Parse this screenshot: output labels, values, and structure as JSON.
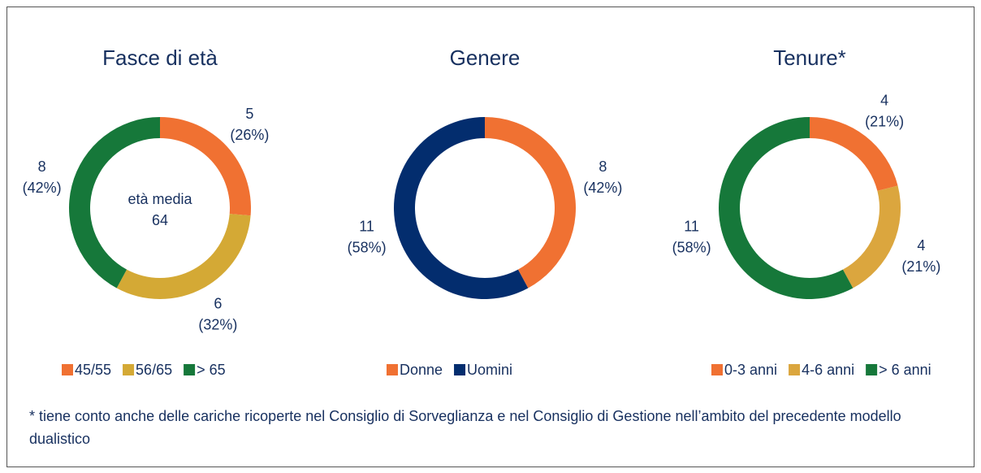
{
  "charts": [
    {
      "chart_data": {
        "type": "pie",
        "donut": true,
        "title": "Fasce di età",
        "categories": [
          "45/55",
          "56/65",
          "> 65"
        ],
        "values": [
          5,
          6,
          8
        ],
        "shares": [
          26,
          32,
          42
        ],
        "share_labels": [
          "(26%)",
          "(32%)",
          "(42%)"
        ],
        "colors": [
          "#f07132",
          "#d4a935",
          "#16783a"
        ],
        "center_label": "età media",
        "center_value": 64
      }
    },
    {
      "chart_data": {
        "type": "pie",
        "donut": true,
        "title": "Genere",
        "categories": [
          "Donne",
          "Uomini"
        ],
        "values": [
          8,
          11
        ],
        "shares": [
          42,
          58
        ],
        "share_labels": [
          "(42%)",
          "(58%)"
        ],
        "colors": [
          "#f07132",
          "#032d6e"
        ]
      }
    },
    {
      "chart_data": {
        "type": "pie",
        "donut": true,
        "title": "Tenure*",
        "categories": [
          "0-3 anni",
          "4-6 anni",
          "> 6 anni"
        ],
        "values": [
          4,
          4,
          11
        ],
        "shares": [
          21,
          21,
          58
        ],
        "share_labels": [
          "(21%)",
          "(21%)",
          "(58%)"
        ],
        "colors": [
          "#f07132",
          "#dba63e",
          "#16783a"
        ]
      }
    }
  ],
  "footnote": "* tiene conto anche delle cariche ricoperte nel Consiglio di Sorveglianza e nel Consiglio di Gestione nell’ambito del precedente modello dualistico"
}
